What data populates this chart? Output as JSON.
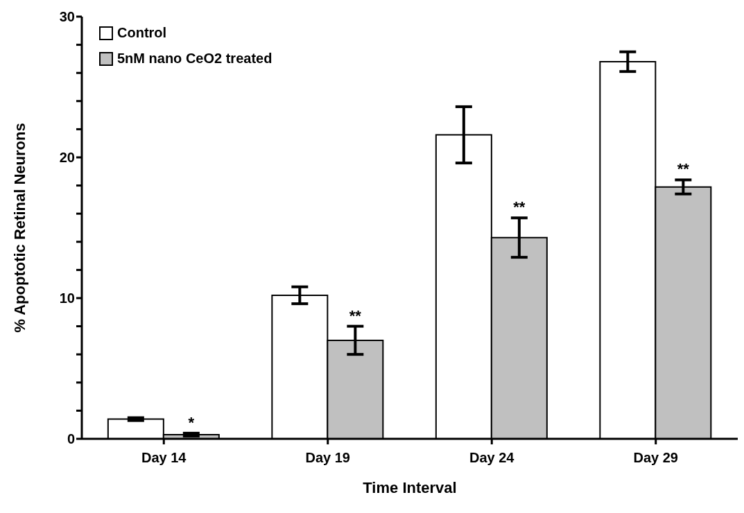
{
  "chart_data": {
    "type": "bar",
    "xlabel": "Time Interval",
    "ylabel": "% Apoptotic Retinal Neurons",
    "categories": [
      "Day 14",
      "Day 19",
      "Day 24",
      "Day 29"
    ],
    "series": [
      {
        "name": "Control",
        "color": "#ffffff",
        "values": [
          1.4,
          10.2,
          21.6,
          26.8
        ],
        "errors": [
          0.1,
          0.6,
          2.0,
          0.7
        ]
      },
      {
        "name": "5nM nano CeO2 treated",
        "color": "#c0c0c0",
        "values": [
          0.3,
          7.0,
          14.3,
          17.9
        ],
        "errors": [
          0.1,
          1.0,
          1.4,
          0.5
        ]
      }
    ],
    "ylim": [
      0,
      30
    ],
    "yticks": [
      0,
      {
        "value": 2,
        "label": null
      },
      {
        "value": 4,
        "label": null
      },
      {
        "value": 6,
        "label": null
      },
      {
        "value": 8,
        "label": null
      },
      10,
      {
        "value": 12,
        "label": null
      },
      {
        "value": 14,
        "label": null
      },
      {
        "value": 16,
        "label": null
      },
      {
        "value": 18,
        "label": null
      },
      20,
      {
        "value": 22,
        "label": null
      },
      {
        "value": 24,
        "label": null
      },
      {
        "value": 26,
        "label": null
      },
      {
        "value": 28,
        "label": null
      },
      30
    ],
    "annotations": [
      {
        "text": "*",
        "x": "Day 14",
        "y": 0.4
      },
      {
        "text": "**",
        "x": "Day 19",
        "y": 8.0
      },
      {
        "text": "**",
        "x": "Day 24",
        "y": 15.7
      },
      {
        "text": "**",
        "x": "Day 29",
        "y": 18.4
      }
    ],
    "legend": "top left",
    "grid": false
  }
}
